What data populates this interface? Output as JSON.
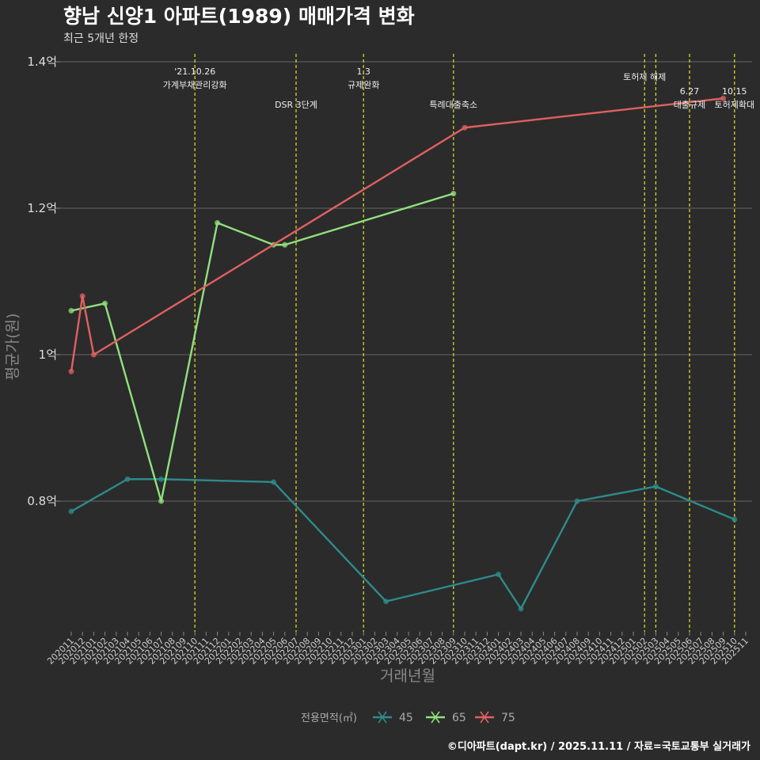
{
  "chart_data": {
    "type": "line",
    "title": "향남 신양1 아파트(1989) 매매가격 변화",
    "subtitle": "최근 5개년 한정",
    "xlabel": "거래년월",
    "ylabel": "평균가(원)",
    "ylim": [
      0.62,
      1.41
    ],
    "yticks": [
      {
        "value": 0.8,
        "label": "0.8억"
      },
      {
        "value": 1.0,
        "label": "1억"
      },
      {
        "value": 1.2,
        "label": "1.2억"
      },
      {
        "value": 1.4,
        "label": "1.4억"
      }
    ],
    "months": [
      "202011",
      "202012",
      "202101",
      "202102",
      "202103",
      "202104",
      "202105",
      "202106",
      "202107",
      "202108",
      "202109",
      "202110",
      "202111",
      "202112",
      "202201",
      "202202",
      "202203",
      "202204",
      "202205",
      "202206",
      "202207",
      "202208",
      "202209",
      "202210",
      "202211",
      "202212",
      "202301",
      "202302",
      "202303",
      "202304",
      "202305",
      "202306",
      "202307",
      "202308",
      "202309",
      "202310",
      "202311",
      "202312",
      "202401",
      "202402",
      "202403",
      "202404",
      "202405",
      "202406",
      "202407",
      "202408",
      "202409",
      "202410",
      "202411",
      "202412",
      "202501",
      "202502",
      "202503",
      "202504",
      "202505",
      "202506",
      "202507",
      "202508",
      "202509",
      "202510",
      "202511"
    ],
    "legend_title": "전용면적(㎡)",
    "series": [
      {
        "name": "45",
        "color": "#2e8b8b",
        "points": [
          [
            "202011",
            0.786
          ],
          [
            "202104",
            0.83
          ],
          [
            "202107",
            0.83
          ],
          [
            "202205",
            0.826
          ],
          [
            "202303",
            0.663
          ],
          [
            "202401",
            0.7
          ],
          [
            "202403",
            0.653
          ],
          [
            "202408",
            0.8
          ],
          [
            "202503",
            0.82
          ],
          [
            "202510",
            0.775
          ]
        ]
      },
      {
        "name": "65",
        "color": "#90e07c",
        "points": [
          [
            "202011",
            1.06
          ],
          [
            "202102",
            1.07
          ],
          [
            "202107",
            0.8
          ],
          [
            "202112",
            1.18
          ],
          [
            "202205",
            1.15
          ],
          [
            "202206",
            1.15
          ],
          [
            "202309",
            1.22
          ]
        ]
      },
      {
        "name": "75",
        "color": "#e06060",
        "points": [
          [
            "202011",
            0.977
          ],
          [
            "202012",
            1.08
          ],
          [
            "202101",
            1.0
          ],
          [
            "202310",
            1.31
          ],
          [
            "202509",
            1.35
          ]
        ]
      }
    ],
    "vlines": [
      {
        "month": "202110",
        "lines": [
          "'21.10.26",
          "가계부채관리강화"
        ],
        "level": 1
      },
      {
        "month": "202207",
        "lines": [
          "DSR 3단계"
        ],
        "level": 2
      },
      {
        "month": "202301",
        "lines": [
          "1.3",
          "규제완화"
        ],
        "level": 1
      },
      {
        "month": "202309",
        "lines": [
          "특례대출축소"
        ],
        "level": 2
      },
      {
        "month": "202502",
        "lines": [
          "토허제 해제"
        ],
        "level": 1
      },
      {
        "month": "202503",
        "lines": [],
        "level": 1
      },
      {
        "month": "202506",
        "lines": [
          "6.27",
          "대출규제"
        ],
        "level": 3
      },
      {
        "month": "202510",
        "lines": [
          "10.15",
          "토허제확대"
        ],
        "level": 3
      }
    ],
    "caption": "©디아파트(dapt.kr) / 2025.11.11 / 자료=국토교통부 실거래가"
  }
}
